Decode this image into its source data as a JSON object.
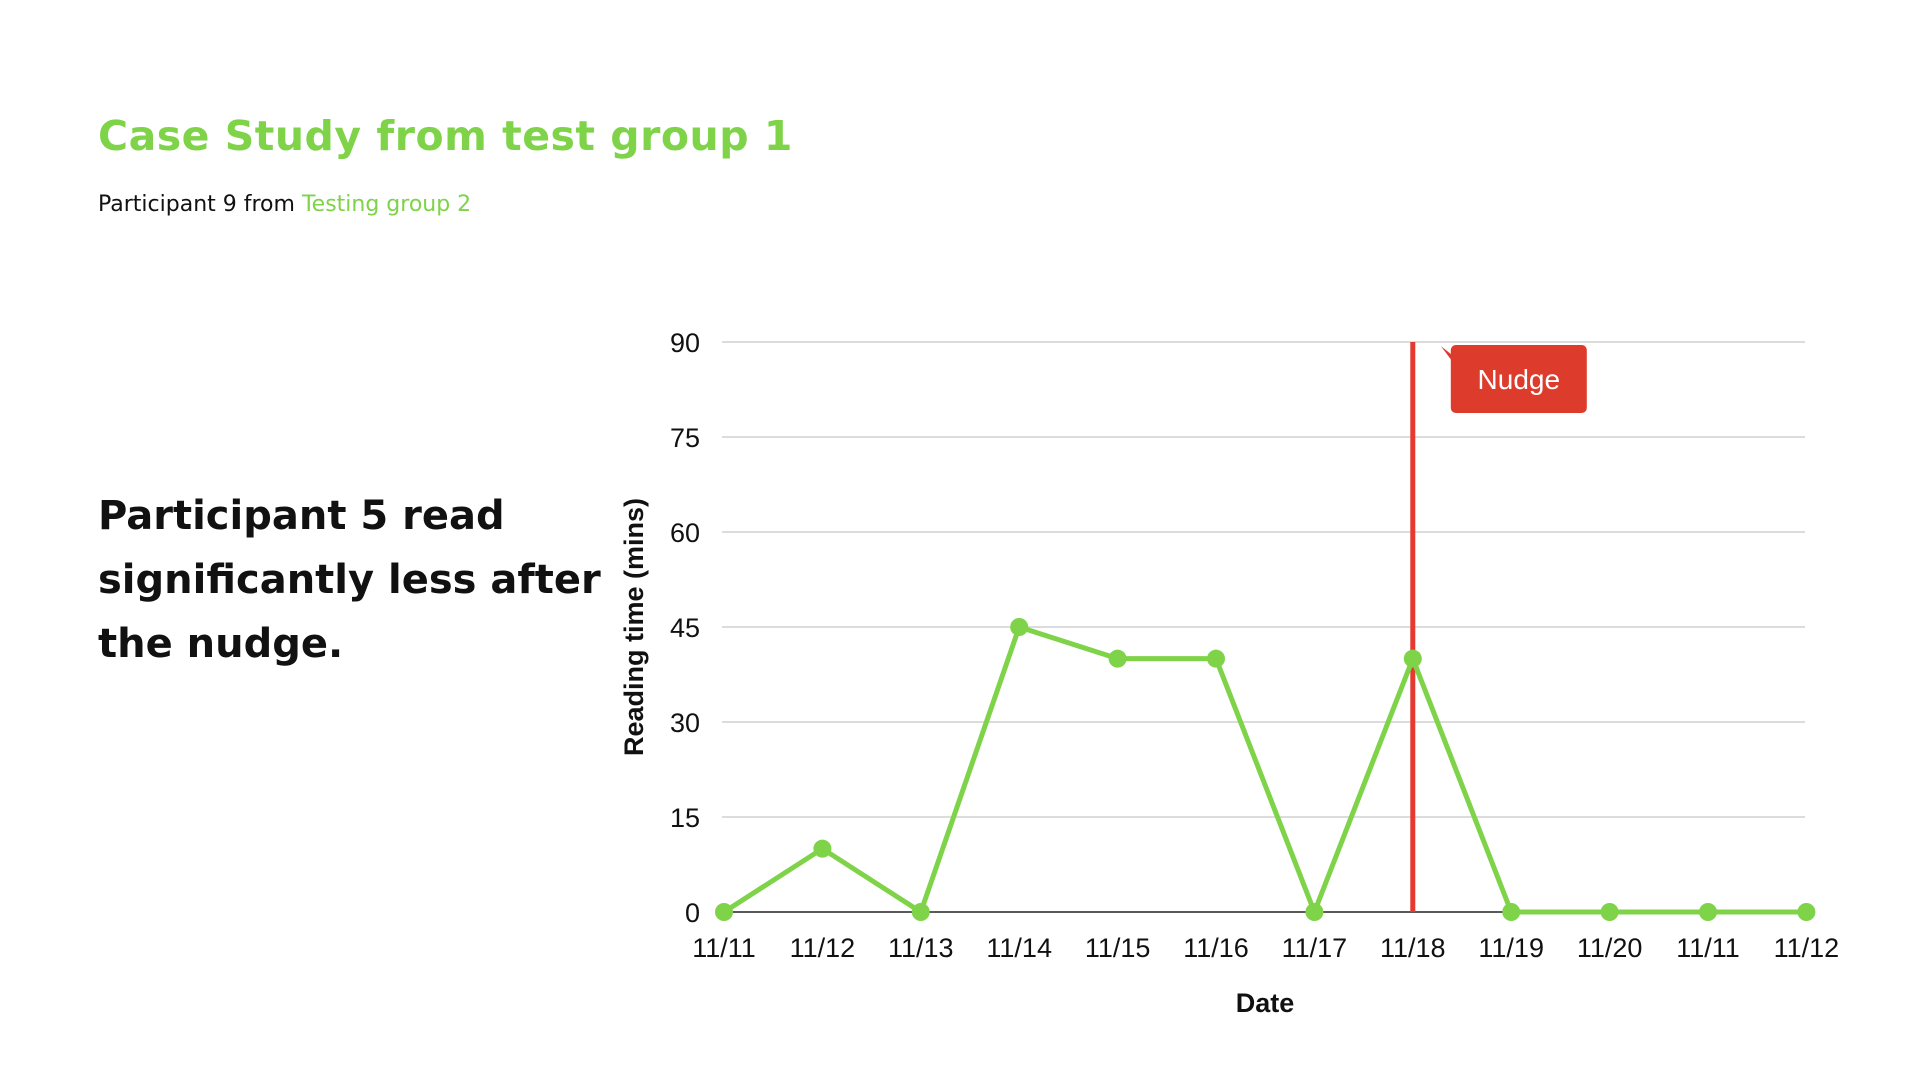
{
  "slide": {
    "title": "Case Study from test group 1",
    "subtitle_prefix": "Participant 9 from ",
    "subtitle_group": "Testing group 2",
    "headline": "Participant 5 read significantly less after the nudge."
  },
  "colors": {
    "accent": "#7ed348",
    "line": "#7ed348",
    "marker": "#e53a30",
    "annotation_bg": "#dd3b2c",
    "grid": "#d0d0d0",
    "text": "#111111"
  },
  "chart_data": {
    "type": "line",
    "title": "",
    "xlabel": "Date",
    "ylabel": "Reading time (mins)",
    "categories": [
      "11/11",
      "11/12",
      "11/13",
      "11/14",
      "11/15",
      "11/16",
      "11/17",
      "11/18",
      "11/19",
      "11/20",
      "11/11",
      "11/12"
    ],
    "series": [
      {
        "values": [
          0,
          10,
          0,
          45,
          40,
          40,
          0,
          40,
          0,
          0,
          0,
          0
        ]
      }
    ],
    "ylim": [
      0,
      90
    ],
    "yticks": [
      0,
      15,
      30,
      45,
      60,
      75,
      90
    ],
    "grid": true,
    "legend": "none",
    "annotations": [
      {
        "type": "vertical-line",
        "x_category_index": 7,
        "label": "Nudge"
      }
    ]
  }
}
